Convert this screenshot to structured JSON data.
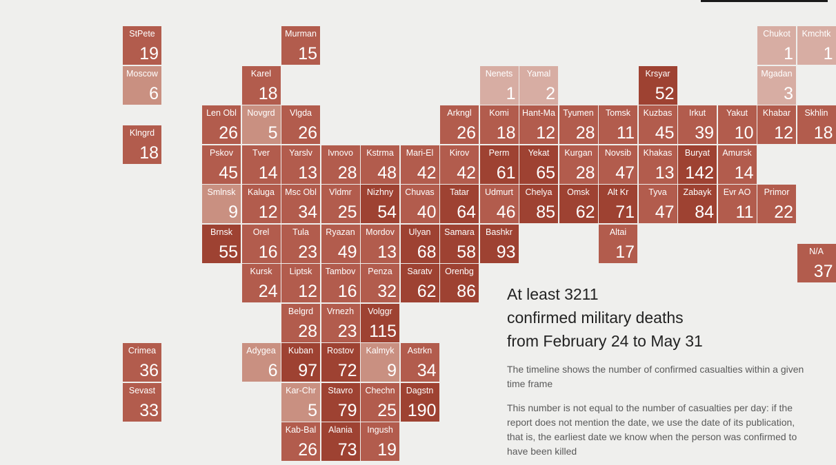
{
  "chart_data": {
    "type": "tile grid map",
    "title_lines": [
      "At least 3211",
      "confirmed military deaths",
      "from February 24 to May 31"
    ],
    "notes": [
      "The timeline shows the number of confirmed casualties within a given time frame",
      "This number is not equal to the number of casualties per day: if the report does not mention the date, we use the date of its publication, that is, the earliest date we know when the person was confirmed to have been killed"
    ],
    "regions": [
      {
        "label": "StPete",
        "value": 19,
        "col": 0,
        "row": 0
      },
      {
        "label": "Murman",
        "value": 15,
        "col": 4,
        "row": 0
      },
      {
        "label": "Chukot",
        "value": 1,
        "col": 16,
        "row": 0
      },
      {
        "label": "Kmchtk",
        "value": 1,
        "col": 17,
        "row": 0
      },
      {
        "label": "Moscow",
        "value": 6,
        "col": 0,
        "row": 1
      },
      {
        "label": "Karel",
        "value": 18,
        "col": 3,
        "row": 1
      },
      {
        "label": "Nenets",
        "value": 1,
        "col": 9,
        "row": 1
      },
      {
        "label": "Yamal",
        "value": 2,
        "col": 10,
        "row": 1
      },
      {
        "label": "Krsyar",
        "value": 52,
        "col": 13,
        "row": 1
      },
      {
        "label": "Mgadan",
        "value": 3,
        "col": 16,
        "row": 1
      },
      {
        "label": "Klngrd",
        "value": 18,
        "col": 0,
        "row": 2.5
      },
      {
        "label": "Len Obl",
        "value": 26,
        "col": 2,
        "row": 2
      },
      {
        "label": "Novgrd",
        "value": 5,
        "col": 3,
        "row": 2
      },
      {
        "label": "Vlgda",
        "value": 26,
        "col": 4,
        "row": 2
      },
      {
        "label": "Arkngl",
        "value": 26,
        "col": 8,
        "row": 2
      },
      {
        "label": "Komi",
        "value": 18,
        "col": 9,
        "row": 2
      },
      {
        "label": "Hant-Ma",
        "value": 12,
        "col": 10,
        "row": 2
      },
      {
        "label": "Tyumen",
        "value": 28,
        "col": 11,
        "row": 2
      },
      {
        "label": "Tomsk",
        "value": 11,
        "col": 12,
        "row": 2
      },
      {
        "label": "Kuzbas",
        "value": 45,
        "col": 13,
        "row": 2
      },
      {
        "label": "Irkut",
        "value": 39,
        "col": 14,
        "row": 2
      },
      {
        "label": "Yakut",
        "value": 10,
        "col": 15,
        "row": 2
      },
      {
        "label": "Khabar",
        "value": 12,
        "col": 16,
        "row": 2
      },
      {
        "label": "Skhlin",
        "value": 18,
        "col": 17,
        "row": 2
      },
      {
        "label": "Pskov",
        "value": 45,
        "col": 2,
        "row": 3
      },
      {
        "label": "Tver",
        "value": 14,
        "col": 3,
        "row": 3
      },
      {
        "label": "Yarslv",
        "value": 13,
        "col": 4,
        "row": 3
      },
      {
        "label": "Ivnovo",
        "value": 28,
        "col": 5,
        "row": 3
      },
      {
        "label": "Kstrma",
        "value": 48,
        "col": 6,
        "row": 3
      },
      {
        "label": "Mari-El",
        "value": 42,
        "col": 7,
        "row": 3
      },
      {
        "label": "Kirov",
        "value": 42,
        "col": 8,
        "row": 3
      },
      {
        "label": "Perm",
        "value": 61,
        "col": 9,
        "row": 3
      },
      {
        "label": "Yekat",
        "value": 65,
        "col": 10,
        "row": 3
      },
      {
        "label": "Kurgan",
        "value": 28,
        "col": 11,
        "row": 3
      },
      {
        "label": "Novsib",
        "value": 47,
        "col": 12,
        "row": 3
      },
      {
        "label": "Khakas",
        "value": 13,
        "col": 13,
        "row": 3
      },
      {
        "label": "Buryat",
        "value": 142,
        "col": 14,
        "row": 3
      },
      {
        "label": "Amursk",
        "value": 14,
        "col": 15,
        "row": 3
      },
      {
        "label": "Smlnsk",
        "value": 9,
        "col": 2,
        "row": 4
      },
      {
        "label": "Kaluga",
        "value": 12,
        "col": 3,
        "row": 4
      },
      {
        "label": "Msc Obl",
        "value": 34,
        "col": 4,
        "row": 4
      },
      {
        "label": "Vldmr",
        "value": 25,
        "col": 5,
        "row": 4
      },
      {
        "label": "Nizhny",
        "value": 54,
        "col": 6,
        "row": 4
      },
      {
        "label": "Chuvas",
        "value": 40,
        "col": 7,
        "row": 4
      },
      {
        "label": "Tatar",
        "value": 64,
        "col": 8,
        "row": 4
      },
      {
        "label": "Udmurt",
        "value": 46,
        "col": 9,
        "row": 4
      },
      {
        "label": "Chelya",
        "value": 85,
        "col": 10,
        "row": 4
      },
      {
        "label": "Omsk",
        "value": 62,
        "col": 11,
        "row": 4
      },
      {
        "label": "Alt Kr",
        "value": 71,
        "col": 12,
        "row": 4
      },
      {
        "label": "Tyva",
        "value": 47,
        "col": 13,
        "row": 4
      },
      {
        "label": "Zabayk",
        "value": 84,
        "col": 14,
        "row": 4
      },
      {
        "label": "Evr AO",
        "value": 11,
        "col": 15,
        "row": 4
      },
      {
        "label": "Primor",
        "value": 22,
        "col": 16,
        "row": 4
      },
      {
        "label": "Brnsk",
        "value": 55,
        "col": 2,
        "row": 5
      },
      {
        "label": "Orel",
        "value": 16,
        "col": 3,
        "row": 5
      },
      {
        "label": "Tula",
        "value": 23,
        "col": 4,
        "row": 5
      },
      {
        "label": "Ryazan",
        "value": 49,
        "col": 5,
        "row": 5
      },
      {
        "label": "Mordov",
        "value": 13,
        "col": 6,
        "row": 5
      },
      {
        "label": "Ulyan",
        "value": 68,
        "col": 7,
        "row": 5
      },
      {
        "label": "Samara",
        "value": 58,
        "col": 8,
        "row": 5
      },
      {
        "label": "Bashkr",
        "value": 93,
        "col": 9,
        "row": 5
      },
      {
        "label": "Altai",
        "value": 17,
        "col": 12,
        "row": 5
      },
      {
        "label": "N/A",
        "value": 37,
        "col": 17,
        "row": 5.5
      },
      {
        "label": "Kursk",
        "value": 24,
        "col": 3,
        "row": 6
      },
      {
        "label": "Liptsk",
        "value": 12,
        "col": 4,
        "row": 6
      },
      {
        "label": "Tambov",
        "value": 16,
        "col": 5,
        "row": 6
      },
      {
        "label": "Penza",
        "value": 32,
        "col": 6,
        "row": 6
      },
      {
        "label": "Saratv",
        "value": 62,
        "col": 7,
        "row": 6
      },
      {
        "label": "Orenbg",
        "value": 86,
        "col": 8,
        "row": 6
      },
      {
        "label": "Belgrd",
        "value": 28,
        "col": 4,
        "row": 7
      },
      {
        "label": "Vrnezh",
        "value": 23,
        "col": 5,
        "row": 7
      },
      {
        "label": "Volggr",
        "value": 115,
        "col": 6,
        "row": 7
      },
      {
        "label": "Crimea",
        "value": 36,
        "col": 0,
        "row": 8
      },
      {
        "label": "Adygea",
        "value": 6,
        "col": 3,
        "row": 8
      },
      {
        "label": "Kuban",
        "value": 97,
        "col": 4,
        "row": 8
      },
      {
        "label": "Rostov",
        "value": 72,
        "col": 5,
        "row": 8
      },
      {
        "label": "Kalmyk",
        "value": 9,
        "col": 6,
        "row": 8
      },
      {
        "label": "Astrkn",
        "value": 34,
        "col": 7,
        "row": 8
      },
      {
        "label": "Sevast",
        "value": 33,
        "col": 0,
        "row": 9
      },
      {
        "label": "Kar-Chr",
        "value": 5,
        "col": 4,
        "row": 9
      },
      {
        "label": "Stavro",
        "value": 79,
        "col": 5,
        "row": 9
      },
      {
        "label": "Chechn",
        "value": 25,
        "col": 6,
        "row": 9
      },
      {
        "label": "Dagstn",
        "value": 190,
        "col": 7,
        "row": 9
      },
      {
        "label": "Kab-Bal",
        "value": 26,
        "col": 4,
        "row": 10
      },
      {
        "label": "Alania",
        "value": 73,
        "col": 5,
        "row": 10
      },
      {
        "label": "Ingush",
        "value": 19,
        "col": 6,
        "row": 10
      }
    ]
  },
  "colors": {
    "background": "#efefed",
    "scale": [
      "#d7ada3",
      "#c99081",
      "#b25c4d",
      "#9e4232"
    ]
  }
}
